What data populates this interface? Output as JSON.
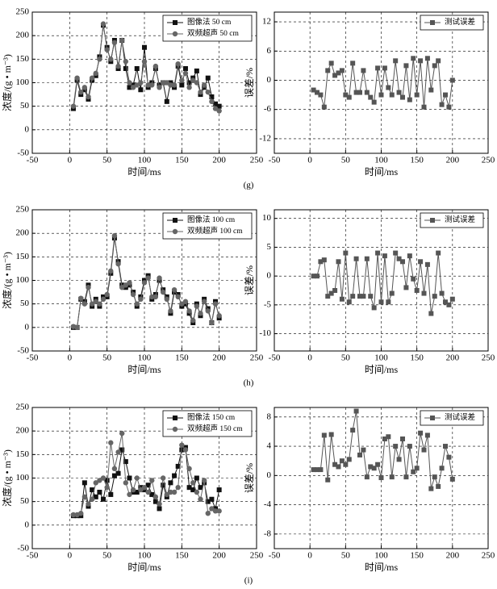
{
  "chart_data": [
    {
      "type": "line",
      "panel_label": "(g)",
      "xlabel": "时间/ms",
      "ylabel": "浓度/(g • m⁻³)",
      "xlim": [
        -50,
        250
      ],
      "xticks": [
        -50,
        0,
        50,
        100,
        150,
        200,
        250
      ],
      "ylim": [
        -50,
        250
      ],
      "yticks": [
        -50,
        0,
        50,
        100,
        150,
        200,
        250
      ],
      "grid": true,
      "legend": "upper right",
      "x": [
        5,
        10,
        15,
        20,
        25,
        30,
        35,
        40,
        45,
        50,
        55,
        60,
        65,
        70,
        75,
        80,
        85,
        90,
        95,
        100,
        105,
        110,
        115,
        120,
        125,
        130,
        135,
        140,
        145,
        150,
        155,
        160,
        165,
        170,
        175,
        180,
        185,
        190,
        195,
        200
      ],
      "series": [
        {
          "name": "图像法 50 cm",
          "color": "#111111",
          "marker": "square",
          "values": [
            45,
            105,
            75,
            85,
            65,
            105,
            115,
            155,
            222,
            175,
            145,
            190,
            130,
            190,
            130,
            90,
            95,
            130,
            85,
            175,
            90,
            100,
            130,
            95,
            100,
            60,
            100,
            90,
            135,
            95,
            130,
            100,
            110,
            125,
            75,
            90,
            110,
            70,
            55,
            50
          ]
        },
        {
          "name": "双频超声 50 cm",
          "color": "#666666",
          "marker": "circle",
          "values": [
            50,
            110,
            80,
            90,
            70,
            110,
            120,
            150,
            225,
            170,
            150,
            185,
            135,
            190,
            145,
            100,
            90,
            95,
            100,
            145,
            95,
            95,
            135,
            90,
            100,
            100,
            95,
            95,
            140,
            105,
            120,
            90,
            105,
            100,
            80,
            95,
            80,
            60,
            45,
            40
          ]
        }
      ]
    },
    {
      "type": "line",
      "ylabel": "误差/%",
      "xlabel": "时间/ms",
      "xlim": [
        -50,
        250
      ],
      "xticks": [
        -50,
        0,
        50,
        100,
        150,
        200,
        250
      ],
      "ylim": [
        -15,
        14
      ],
      "yticks": [
        -12,
        -6,
        0,
        6,
        12
      ],
      "grid": true,
      "legend": "upper right",
      "x": [
        5,
        10,
        15,
        20,
        25,
        30,
        35,
        40,
        45,
        50,
        55,
        60,
        65,
        70,
        75,
        80,
        85,
        90,
        95,
        100,
        105,
        110,
        115,
        120,
        125,
        130,
        135,
        140,
        145,
        150,
        155,
        160,
        165,
        170,
        175,
        180,
        185,
        190,
        195,
        200
      ],
      "series": [
        {
          "name": "测试误差",
          "color": "#555555",
          "marker": "square",
          "values": [
            -2,
            -2.5,
            -3,
            -5.5,
            2,
            3.5,
            1,
            1.5,
            2,
            -3,
            -3.5,
            3.5,
            -2.5,
            -2.5,
            2,
            -2.5,
            -3.5,
            -4.5,
            2.5,
            -3,
            2.5,
            -1.5,
            -3,
            4,
            -2.5,
            -3.5,
            3,
            -4,
            4.5,
            -3,
            4,
            -5.5,
            4.5,
            -2,
            3,
            4,
            -5,
            -3,
            -5.5,
            0
          ]
        }
      ]
    },
    {
      "type": "line",
      "panel_label": "(h)",
      "xlabel": "时间/ms",
      "ylabel": "浓度/(g • m⁻³)",
      "xlim": [
        -50,
        250
      ],
      "xticks": [
        -50,
        0,
        50,
        100,
        150,
        200,
        250
      ],
      "ylim": [
        -50,
        250
      ],
      "yticks": [
        -50,
        0,
        50,
        100,
        150,
        200,
        250
      ],
      "grid": true,
      "legend": "upper right",
      "x": [
        5,
        10,
        15,
        20,
        25,
        30,
        35,
        40,
        45,
        50,
        55,
        60,
        65,
        70,
        75,
        80,
        85,
        90,
        95,
        100,
        105,
        110,
        115,
        120,
        125,
        130,
        135,
        140,
        145,
        150,
        155,
        160,
        165,
        170,
        175,
        180,
        185,
        190,
        195,
        200
      ],
      "series": [
        {
          "name": "图像法 100 cm",
          "color": "#111111",
          "marker": "square",
          "values": [
            0,
            0,
            60,
            55,
            90,
            45,
            60,
            45,
            65,
            65,
            115,
            190,
            140,
            90,
            85,
            90,
            75,
            45,
            65,
            100,
            110,
            60,
            70,
            100,
            80,
            65,
            30,
            75,
            70,
            45,
            50,
            30,
            10,
            50,
            25,
            60,
            40,
            10,
            55,
            20
          ]
        },
        {
          "name": "双频超声 100 cm",
          "color": "#666666",
          "marker": "circle",
          "values": [
            2,
            0,
            62,
            50,
            85,
            50,
            55,
            50,
            60,
            70,
            120,
            195,
            135,
            85,
            90,
            95,
            70,
            50,
            60,
            95,
            105,
            65,
            65,
            105,
            75,
            60,
            35,
            80,
            65,
            50,
            55,
            35,
            15,
            45,
            30,
            55,
            35,
            10,
            50,
            25
          ]
        }
      ]
    },
    {
      "type": "line",
      "ylabel": "误差/%",
      "xlabel": "时间/ms",
      "xlim": [
        -50,
        250
      ],
      "xticks": [
        -50,
        0,
        50,
        100,
        150,
        200,
        250
      ],
      "ylim": [
        -13,
        11.5
      ],
      "yticks": [
        -10,
        -5,
        0,
        5,
        10
      ],
      "grid": true,
      "legend": "upper right",
      "x": [
        5,
        10,
        15,
        20,
        25,
        30,
        35,
        40,
        45,
        50,
        55,
        60,
        65,
        70,
        75,
        80,
        85,
        90,
        95,
        100,
        105,
        110,
        115,
        120,
        125,
        130,
        135,
        140,
        145,
        150,
        155,
        160,
        165,
        170,
        175,
        180,
        185,
        190,
        195,
        200
      ],
      "series": [
        {
          "name": "测试误差",
          "color": "#555555",
          "marker": "square",
          "values": [
            0,
            0,
            2.5,
            2.8,
            -3.5,
            -3,
            -2.5,
            2.5,
            -4,
            4,
            -4.5,
            -3.5,
            3,
            -3.5,
            -3.5,
            3,
            -3.5,
            -5.5,
            4,
            -4.5,
            3.5,
            -4.5,
            -3,
            4,
            3,
            2.5,
            -2,
            3.5,
            -0.5,
            -2.5,
            2.5,
            -3,
            2,
            -6.5,
            -3.5,
            4,
            -3,
            -4.5,
            -5,
            -4
          ]
        }
      ]
    },
    {
      "type": "line",
      "panel_label": "(i)",
      "xlabel": "时间/ms",
      "ylabel": "浓度/(g • m⁻³)",
      "xlim": [
        -50,
        250
      ],
      "xticks": [
        -50,
        0,
        50,
        100,
        150,
        200,
        250
      ],
      "ylim": [
        -50,
        250
      ],
      "yticks": [
        -50,
        0,
        50,
        100,
        150,
        200,
        250
      ],
      "grid": true,
      "legend": "upper right",
      "x": [
        5,
        10,
        15,
        20,
        25,
        30,
        35,
        40,
        45,
        50,
        55,
        60,
        65,
        70,
        75,
        80,
        85,
        90,
        95,
        100,
        105,
        110,
        115,
        120,
        125,
        130,
        135,
        140,
        145,
        150,
        155,
        160,
        165,
        170,
        175,
        180,
        185,
        190,
        195,
        200
      ],
      "series": [
        {
          "name": "图像法 150 cm",
          "color": "#111111",
          "marker": "square",
          "values": [
            20,
            20,
            20,
            90,
            40,
            75,
            60,
            70,
            55,
            95,
            65,
            105,
            110,
            160,
            135,
            100,
            70,
            70,
            80,
            75,
            85,
            65,
            50,
            35,
            85,
            60,
            90,
            105,
            125,
            160,
            165,
            80,
            75,
            100,
            80,
            90,
            50,
            55,
            35,
            75
          ]
        },
        {
          "name": "双频超声 150 cm",
          "color": "#666666",
          "marker": "circle",
          "values": [
            22,
            22,
            25,
            60,
            45,
            55,
            90,
            95,
            100,
            80,
            175,
            120,
            155,
            195,
            90,
            65,
            75,
            100,
            75,
            80,
            70,
            95,
            60,
            45,
            100,
            65,
            70,
            70,
            80,
            170,
            160,
            120,
            90,
            70,
            55,
            95,
            25,
            35,
            30,
            30
          ]
        }
      ]
    },
    {
      "type": "line",
      "ylabel": "误差/%",
      "xlabel": "时间/ms",
      "xlim": [
        -50,
        250
      ],
      "xticks": [
        -50,
        0,
        50,
        100,
        150,
        200,
        250
      ],
      "ylim": [
        -10,
        9.3
      ],
      "yticks": [
        -8,
        -4,
        0,
        4,
        8
      ],
      "grid": true,
      "legend": "upper right",
      "x": [
        5,
        10,
        15,
        20,
        25,
        30,
        35,
        40,
        45,
        50,
        55,
        60,
        65,
        70,
        75,
        80,
        85,
        90,
        95,
        100,
        105,
        110,
        115,
        120,
        125,
        130,
        135,
        140,
        145,
        150,
        155,
        160,
        165,
        170,
        175,
        180,
        185,
        190,
        195,
        200
      ],
      "series": [
        {
          "name": "测试误差",
          "color": "#555555",
          "marker": "square",
          "values": [
            0.8,
            0.8,
            0.8,
            5.5,
            -0.6,
            5.6,
            1.5,
            1.2,
            2,
            1.5,
            2.2,
            6.2,
            8.8,
            2.8,
            3.5,
            -0.2,
            1.2,
            1,
            1.5,
            -0.3,
            5,
            5.3,
            -0.2,
            4,
            2.2,
            5,
            -0.2,
            4,
            0.5,
            1,
            5.8,
            3.5,
            5.5,
            -1.8,
            -0.2,
            -1.5,
            1,
            4,
            2.5,
            -0.5
          ]
        }
      ]
    }
  ]
}
